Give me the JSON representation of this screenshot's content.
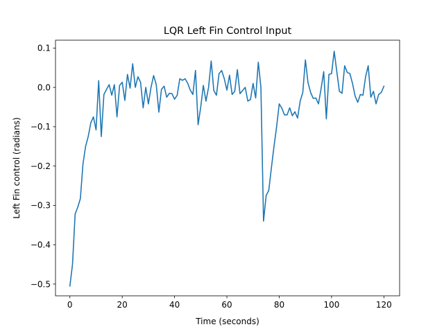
{
  "chart_data": {
    "type": "line",
    "title": "LQR Left Fin Control Input",
    "xlabel": "Time (seconds)",
    "ylabel": "Left Fin control (radians)",
    "xlim": [
      -5.5,
      126
    ],
    "ylim": [
      -0.53,
      0.12
    ],
    "xticks": [
      0,
      20,
      40,
      60,
      80,
      100,
      120
    ],
    "xtick_labels": [
      "0",
      "20",
      "40",
      "60",
      "80",
      "100",
      "120"
    ],
    "yticks": [
      0.1,
      0.0,
      -0.1,
      -0.2,
      -0.3,
      -0.4,
      -0.5
    ],
    "ytick_labels": [
      "0.1",
      "0.0",
      "−0.1",
      "−0.2",
      "−0.3",
      "−0.4",
      "−0.5"
    ],
    "grid": false,
    "legend": "none",
    "line_color": "#1f77b4",
    "series": [
      {
        "x": [
          0,
          1,
          2,
          3,
          4,
          5,
          6,
          7,
          8,
          9,
          10,
          11,
          12,
          13,
          14,
          15,
          16,
          17,
          18,
          19,
          20,
          21,
          22,
          23,
          24,
          25,
          26,
          27,
          28,
          29,
          30,
          31,
          32,
          33,
          34,
          35,
          36,
          37,
          38,
          39,
          40,
          41,
          42,
          43,
          44,
          45,
          46,
          47,
          48,
          49,
          50,
          51,
          52,
          53,
          54,
          55,
          56,
          57,
          58,
          59,
          60,
          61,
          62,
          63,
          64,
          65,
          66,
          67,
          68,
          69,
          70,
          71,
          72,
          73,
          74,
          75,
          76,
          77,
          78,
          79,
          80,
          81,
          82,
          83,
          84,
          85,
          86,
          87,
          88,
          89,
          90,
          91,
          92,
          93,
          94,
          95,
          96,
          97,
          98,
          99,
          100,
          101,
          102,
          103,
          104,
          105,
          106,
          107,
          108,
          109,
          110,
          111,
          112,
          113,
          114,
          115,
          116,
          117,
          118,
          119,
          120
        ],
        "y": [
          -0.505,
          -0.45,
          -0.322,
          -0.305,
          -0.283,
          -0.195,
          -0.15,
          -0.125,
          -0.09,
          -0.075,
          -0.108,
          0.017,
          -0.125,
          -0.018,
          -0.005,
          0.007,
          -0.02,
          0.007,
          -0.075,
          0.005,
          0.013,
          -0.033,
          0.033,
          -0.002,
          0.06,
          0.0,
          0.027,
          0.013,
          -0.052,
          0.0,
          -0.042,
          0.0,
          0.03,
          0.007,
          -0.063,
          -0.005,
          0.003,
          -0.025,
          -0.015,
          -0.016,
          -0.03,
          -0.02,
          0.022,
          0.018,
          0.022,
          0.011,
          -0.007,
          -0.018,
          0.043,
          -0.095,
          -0.05,
          0.005,
          -0.035,
          0.0,
          0.067,
          -0.008,
          -0.02,
          0.035,
          0.043,
          0.022,
          -0.007,
          0.031,
          -0.018,
          -0.01,
          0.045,
          -0.016,
          -0.008,
          0.0,
          -0.035,
          -0.031,
          0.01,
          -0.027,
          0.064,
          0.0,
          -0.34,
          -0.275,
          -0.262,
          -0.205,
          -0.15,
          -0.1,
          -0.042,
          -0.053,
          -0.07,
          -0.07,
          -0.052,
          -0.072,
          -0.062,
          -0.078,
          -0.035,
          -0.013,
          0.07,
          0.012,
          -0.013,
          -0.028,
          -0.027,
          -0.042,
          -0.003,
          0.04,
          -0.08,
          0.033,
          0.035,
          0.092,
          0.04,
          -0.01,
          -0.015,
          0.055,
          0.038,
          0.035,
          0.01,
          -0.022,
          -0.038,
          -0.018,
          -0.02,
          0.027,
          0.055,
          -0.025,
          -0.01,
          -0.042,
          -0.018,
          -0.013,
          0.003
        ]
      }
    ]
  }
}
